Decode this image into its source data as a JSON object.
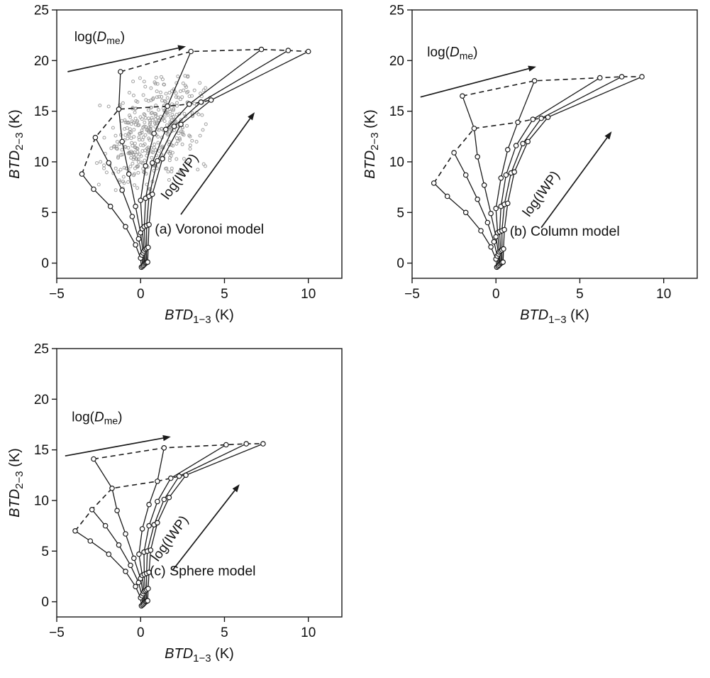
{
  "style": {
    "background": "#ffffff",
    "line_color": "#1a1a1a",
    "marker_fill": "#ffffff",
    "scatter_color": "#909090"
  },
  "axis_labels": {
    "x": {
      "main": "BTD",
      "sub": "1−3",
      "unit": "(K)"
    },
    "y": {
      "main": "BTD",
      "sub": "2−3",
      "unit": "(K)"
    }
  },
  "annotations": {
    "dme": {
      "pre": "log(",
      "sym": "D",
      "sub": "me",
      "post": ")"
    },
    "iwp": {
      "text": "log(IWP)"
    }
  },
  "chart_data": [
    {
      "id": "a",
      "type": "line",
      "title": "(a) Voronoi model",
      "xlabel": "BTD_1-3 (K)",
      "ylabel": "BTD_2-3 (K)",
      "x_range": [
        -5,
        12
      ],
      "y_range": [
        -1.5,
        25
      ],
      "x_ticks": [
        -5,
        0,
        5,
        10
      ],
      "y_ticks": [
        0,
        5,
        10,
        15,
        20,
        25
      ],
      "solid_curves": [
        [
          [
            0.05,
            -0.4
          ],
          [
            0.0,
            0.5
          ],
          [
            -0.3,
            1.8
          ],
          [
            -0.9,
            3.6
          ],
          [
            -1.8,
            5.6
          ],
          [
            -2.8,
            7.3
          ],
          [
            -3.5,
            8.8
          ]
        ],
        [
          [
            0.12,
            -0.3
          ],
          [
            0.08,
            0.8
          ],
          [
            -0.12,
            2.4
          ],
          [
            -0.5,
            4.6
          ],
          [
            -1.1,
            7.2
          ],
          [
            -1.9,
            9.9
          ],
          [
            -2.7,
            12.4
          ]
        ],
        [
          [
            0.18,
            -0.2
          ],
          [
            0.15,
            1.0
          ],
          [
            0.0,
            3.0
          ],
          [
            -0.3,
            5.6
          ],
          [
            -0.7,
            8.8
          ],
          [
            -1.1,
            12.0
          ],
          [
            -1.3,
            15.2
          ],
          [
            -1.2,
            18.9
          ]
        ],
        [
          [
            0.24,
            -0.1
          ],
          [
            0.2,
            1.2
          ],
          [
            0.1,
            3.4
          ],
          [
            0.0,
            6.2
          ],
          [
            0.3,
            9.6
          ],
          [
            0.8,
            12.8
          ],
          [
            1.6,
            15.5
          ],
          [
            3.0,
            20.9
          ]
        ],
        [
          [
            0.3,
            0.0
          ],
          [
            0.28,
            1.35
          ],
          [
            0.22,
            3.6
          ],
          [
            0.3,
            6.4
          ],
          [
            0.7,
            9.9
          ],
          [
            1.5,
            13.2
          ],
          [
            2.9,
            15.7
          ],
          [
            7.2,
            21.1
          ]
        ],
        [
          [
            0.36,
            0.05
          ],
          [
            0.36,
            1.45
          ],
          [
            0.36,
            3.7
          ],
          [
            0.5,
            6.6
          ],
          [
            1.0,
            10.1
          ],
          [
            2.0,
            13.5
          ],
          [
            3.6,
            15.9
          ],
          [
            8.8,
            21.0
          ]
        ],
        [
          [
            0.42,
            0.1
          ],
          [
            0.45,
            1.55
          ],
          [
            0.5,
            3.8
          ],
          [
            0.7,
            6.8
          ],
          [
            1.3,
            10.3
          ],
          [
            2.4,
            13.7
          ],
          [
            4.2,
            16.1
          ],
          [
            10.0,
            20.9
          ]
        ]
      ],
      "dashed_curves": [
        [
          [
            -3.5,
            8.8
          ],
          [
            -2.7,
            12.4
          ],
          [
            -1.3,
            15.2
          ],
          [
            1.6,
            15.5
          ],
          [
            2.9,
            15.7
          ],
          [
            3.6,
            15.9
          ],
          [
            4.2,
            16.1
          ]
        ],
        [
          [
            -1.2,
            18.9
          ],
          [
            3.0,
            20.9
          ],
          [
            7.2,
            21.1
          ],
          [
            8.8,
            21.0
          ],
          [
            10.0,
            20.9
          ]
        ]
      ],
      "dme_arrow": [
        -4.35,
        18.9,
        2.7,
        21.4
      ],
      "dme_label": [
        -3.95,
        21.9
      ],
      "iwp_arrow": [
        2.4,
        4.8,
        6.8,
        14.9
      ],
      "iwp_label": [
        2.55,
        8.3,
        -54
      ],
      "title_pos": [
        4.1,
        2.9
      ],
      "scatter": {
        "n": 430,
        "cx": 0.7,
        "cy": 13.0,
        "sx": 1.4,
        "sy": 2.7,
        "rho": 0.32,
        "seed": 11,
        "xmin": -2.7,
        "xmax": 4.4,
        "ymin": 5.8,
        "ymax": 18.7
      }
    },
    {
      "id": "b",
      "type": "line",
      "title": "(b) Column model",
      "xlabel": "BTD_1-3 (K)",
      "ylabel": "BTD_2-3 (K)",
      "x_range": [
        -5,
        12
      ],
      "y_range": [
        -1.5,
        25
      ],
      "x_ticks": [
        -5,
        0,
        5,
        10
      ],
      "y_ticks": [
        0,
        5,
        10,
        15,
        20,
        25
      ],
      "solid_curves": [
        [
          [
            0.05,
            -0.4
          ],
          [
            0.0,
            0.4
          ],
          [
            -0.3,
            1.6
          ],
          [
            -0.9,
            3.2
          ],
          [
            -1.8,
            5.0
          ],
          [
            -2.9,
            6.6
          ],
          [
            -3.7,
            7.9
          ]
        ],
        [
          [
            0.12,
            -0.3
          ],
          [
            0.08,
            0.7
          ],
          [
            -0.12,
            2.1
          ],
          [
            -0.5,
            4.0
          ],
          [
            -1.1,
            6.3
          ],
          [
            -1.8,
            8.7
          ],
          [
            -2.5,
            10.9
          ]
        ],
        [
          [
            0.18,
            -0.2
          ],
          [
            0.15,
            0.9
          ],
          [
            0.0,
            2.6
          ],
          [
            -0.3,
            4.9
          ],
          [
            -0.7,
            7.7
          ],
          [
            -1.1,
            10.5
          ],
          [
            -1.3,
            13.3
          ],
          [
            -2.0,
            16.5
          ]
        ],
        [
          [
            0.24,
            -0.1
          ],
          [
            0.2,
            1.1
          ],
          [
            0.1,
            3.0
          ],
          [
            0.0,
            5.4
          ],
          [
            0.3,
            8.4
          ],
          [
            0.7,
            11.2
          ],
          [
            1.3,
            13.9
          ],
          [
            2.3,
            18.0
          ]
        ],
        [
          [
            0.3,
            0.0
          ],
          [
            0.28,
            1.2
          ],
          [
            0.22,
            3.1
          ],
          [
            0.3,
            5.6
          ],
          [
            0.6,
            8.7
          ],
          [
            1.2,
            11.6
          ],
          [
            2.2,
            14.2
          ],
          [
            6.2,
            18.3
          ]
        ],
        [
          [
            0.36,
            0.05
          ],
          [
            0.36,
            1.3
          ],
          [
            0.36,
            3.2
          ],
          [
            0.5,
            5.8
          ],
          [
            0.9,
            8.9
          ],
          [
            1.6,
            11.8
          ],
          [
            2.7,
            14.3
          ],
          [
            7.5,
            18.4
          ]
        ],
        [
          [
            0.42,
            0.1
          ],
          [
            0.45,
            1.4
          ],
          [
            0.5,
            3.3
          ],
          [
            0.7,
            5.9
          ],
          [
            1.1,
            9.0
          ],
          [
            1.9,
            12.0
          ],
          [
            3.1,
            14.4
          ],
          [
            8.7,
            18.4
          ]
        ]
      ],
      "dashed_curves": [
        [
          [
            -3.7,
            7.9
          ],
          [
            -2.5,
            10.9
          ],
          [
            -1.3,
            13.3
          ],
          [
            1.3,
            13.9
          ],
          [
            2.2,
            14.2
          ],
          [
            2.7,
            14.3
          ],
          [
            3.1,
            14.4
          ]
        ],
        [
          [
            -2.0,
            16.5
          ],
          [
            2.3,
            18.0
          ],
          [
            6.2,
            18.3
          ],
          [
            7.5,
            18.4
          ],
          [
            8.7,
            18.4
          ]
        ]
      ],
      "dme_arrow": [
        -4.5,
        16.4,
        2.4,
        19.4
      ],
      "dme_label": [
        -4.1,
        20.4
      ],
      "iwp_arrow": [
        2.7,
        3.5,
        6.9,
        13.0
      ],
      "iwp_label": [
        2.9,
        6.6,
        -54
      ],
      "title_pos": [
        4.1,
        2.7
      ],
      "scatter": null
    },
    {
      "id": "c",
      "type": "line",
      "title": "(c) Sphere model",
      "xlabel": "BTD_1-3 (K)",
      "ylabel": "BTD_2-3 (K)",
      "x_range": [
        -5,
        12
      ],
      "y_range": [
        -1.5,
        25
      ],
      "x_ticks": [
        -5,
        0,
        5,
        10
      ],
      "y_ticks": [
        0,
        5,
        10,
        15,
        20,
        25
      ],
      "solid_curves": [
        [
          [
            0.05,
            -0.4
          ],
          [
            0.0,
            0.4
          ],
          [
            -0.3,
            1.5
          ],
          [
            -0.9,
            3.0
          ],
          [
            -1.9,
            4.7
          ],
          [
            -3.0,
            6.0
          ],
          [
            -3.9,
            7.0
          ]
        ],
        [
          [
            0.12,
            -0.3
          ],
          [
            0.08,
            0.6
          ],
          [
            -0.12,
            1.9
          ],
          [
            -0.6,
            3.6
          ],
          [
            -1.3,
            5.6
          ],
          [
            -2.1,
            7.5
          ],
          [
            -2.9,
            9.1
          ]
        ],
        [
          [
            0.18,
            -0.2
          ],
          [
            0.15,
            0.8
          ],
          [
            0.0,
            2.3
          ],
          [
            -0.4,
            4.3
          ],
          [
            -0.9,
            6.7
          ],
          [
            -1.4,
            9.0
          ],
          [
            -1.7,
            11.2
          ],
          [
            -2.8,
            14.1
          ]
        ],
        [
          [
            0.24,
            -0.1
          ],
          [
            0.2,
            1.0
          ],
          [
            0.1,
            2.6
          ],
          [
            -0.1,
            4.7
          ],
          [
            0.1,
            7.2
          ],
          [
            0.5,
            9.6
          ],
          [
            1.0,
            11.9
          ],
          [
            1.4,
            15.2
          ]
        ],
        [
          [
            0.3,
            0.0
          ],
          [
            0.28,
            1.1
          ],
          [
            0.22,
            2.7
          ],
          [
            0.2,
            4.9
          ],
          [
            0.5,
            7.5
          ],
          [
            1.0,
            9.9
          ],
          [
            1.8,
            12.2
          ],
          [
            5.1,
            15.5
          ]
        ],
        [
          [
            0.36,
            0.05
          ],
          [
            0.36,
            1.2
          ],
          [
            0.36,
            2.8
          ],
          [
            0.4,
            5.0
          ],
          [
            0.8,
            7.6
          ],
          [
            1.4,
            10.1
          ],
          [
            2.3,
            12.4
          ],
          [
            6.3,
            15.6
          ]
        ],
        [
          [
            0.42,
            0.1
          ],
          [
            0.45,
            1.3
          ],
          [
            0.5,
            2.9
          ],
          [
            0.6,
            5.1
          ],
          [
            1.0,
            7.8
          ],
          [
            1.7,
            10.3
          ],
          [
            2.7,
            12.5
          ],
          [
            7.3,
            15.6
          ]
        ]
      ],
      "dashed_curves": [
        [
          [
            -3.9,
            7.0
          ],
          [
            -2.9,
            9.1
          ],
          [
            -1.7,
            11.2
          ],
          [
            1.0,
            11.9
          ],
          [
            1.8,
            12.2
          ],
          [
            2.3,
            12.4
          ],
          [
            2.7,
            12.5
          ]
        ],
        [
          [
            -2.8,
            14.1
          ],
          [
            1.4,
            15.2
          ],
          [
            5.1,
            15.5
          ],
          [
            6.3,
            15.6
          ],
          [
            7.3,
            15.6
          ]
        ]
      ],
      "dme_arrow": [
        -4.5,
        14.4,
        1.8,
        16.3
      ],
      "dme_label": [
        -4.1,
        17.8
      ],
      "iwp_arrow": [
        1.9,
        3.1,
        5.9,
        11.6
      ],
      "iwp_label": [
        1.95,
        6.0,
        -54
      ],
      "title_pos": [
        3.7,
        2.6
      ],
      "scatter": null
    }
  ]
}
